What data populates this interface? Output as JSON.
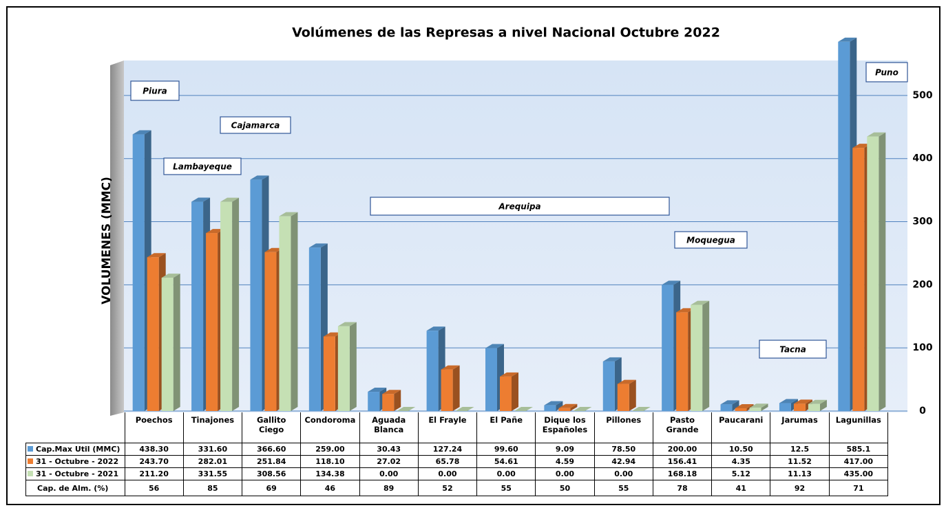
{
  "chart_data": {
    "type": "bar3d",
    "title": "Volúmenes de las Represas a nivel Nacional Octubre 2022",
    "y_axis_label": "VOLUMENES (MMC)",
    "categories": [
      "Poechos",
      "Tinajones",
      "Gallito Ciego",
      "Condoroma",
      "Aguada Blanca",
      "El Frayle",
      "El Pañe",
      "Dique los Españoles",
      "Pillones",
      "Pasto Grande",
      "Paucarani",
      "Jarumas",
      "Lagunillas"
    ],
    "series": [
      {
        "name": "Cap.Max Util (MMC)",
        "color": "#5b9bd5",
        "values": [
          438.3,
          331.6,
          366.6,
          259,
          30.43,
          127.24,
          99.6,
          9.09,
          78.5,
          200,
          10.5,
          12.5,
          585.1
        ],
        "value_labels": [
          "438.30",
          "331.60",
          "366.60",
          "259.00",
          "30.43",
          "127.24",
          "99.60",
          "9.09",
          "78.50",
          "200.00",
          "10.50",
          "12.5",
          "585.1"
        ]
      },
      {
        "name": "31 - Octubre - 2022",
        "color": "#ed7d31",
        "values": [
          243.7,
          282.01,
          251.84,
          118.1,
          27.02,
          65.78,
          54.61,
          4.59,
          42.94,
          156.41,
          4.35,
          11.52,
          417
        ],
        "value_labels": [
          "243.70",
          "282.01",
          "251.84",
          "118.10",
          "27.02",
          "65.78",
          "54.61",
          "4.59",
          "42.94",
          "156.41",
          "4.35",
          "11.52",
          "417.00"
        ]
      },
      {
        "name": "31 - Octubre - 2021",
        "color": "#c5e0b4",
        "values": [
          211.2,
          331.55,
          308.56,
          134.38,
          0,
          0,
          0,
          0,
          0,
          168.18,
          5.12,
          11.13,
          435
        ],
        "value_labels": [
          "211.20",
          "331.55",
          "308.56",
          "134.38",
          "0.00",
          "0.00",
          "0.00",
          "0.00",
          "0.00",
          "168.18",
          "5.12",
          "11.13",
          "435.00"
        ]
      }
    ],
    "capacity": {
      "name": "Cap. de Alm.  (%)",
      "values": [
        56,
        85,
        69,
        46,
        89,
        52,
        55,
        50,
        55,
        78,
        41,
        92,
        71
      ]
    },
    "annotations": [
      "Piura",
      "Cajamarca",
      "Lambayeque",
      "Arequipa",
      "Moquegua",
      "Tacna",
      "Puno"
    ],
    "ylim": [
      0,
      550
    ],
    "yticks": [
      0,
      100,
      200,
      300,
      400,
      500
    ],
    "grid": true
  }
}
